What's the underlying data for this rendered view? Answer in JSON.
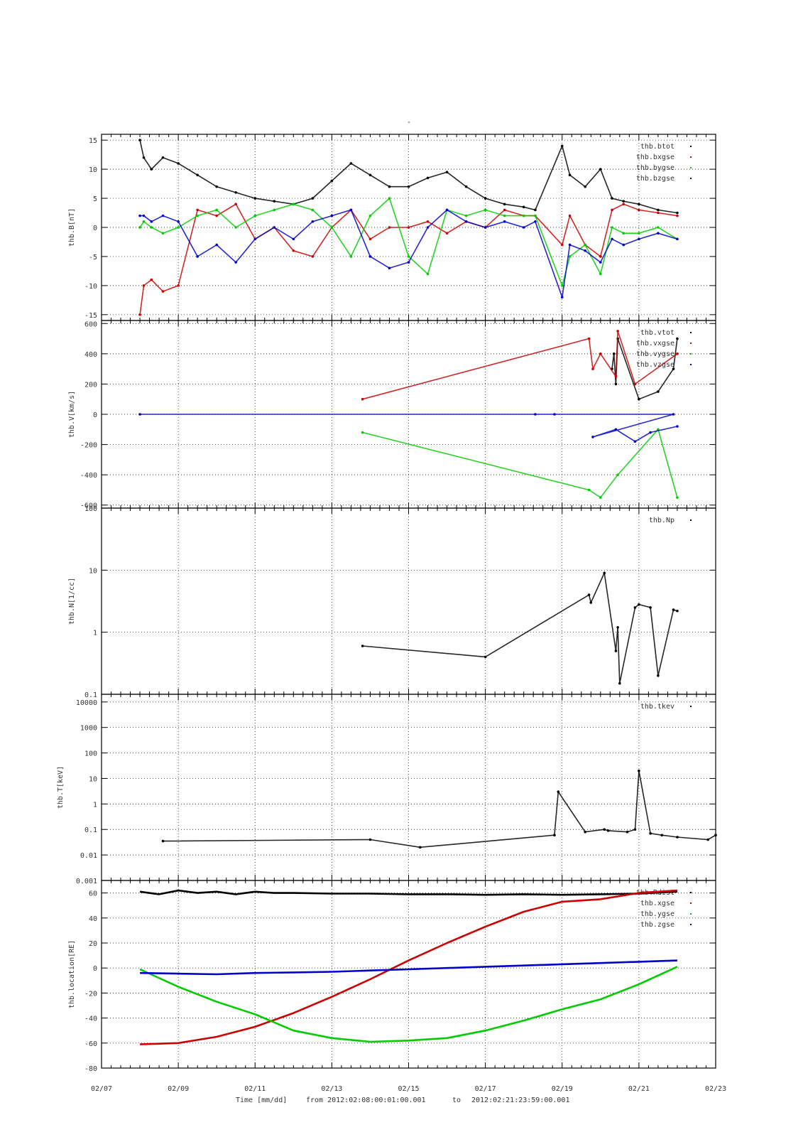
{
  "figure": {
    "top_mark": "-",
    "caption_time": "Time [mm/dd]",
    "caption_from": "from 2012:02:08:00:01:00.001",
    "caption_to": "to",
    "caption_end": "2012:02:21:23:59:00.001",
    "x_ticks": [
      "02/07",
      "02/09",
      "02/11",
      "02/13",
      "02/15",
      "02/17",
      "02/19",
      "02/21",
      "02/23"
    ]
  },
  "colors": {
    "black": "#000000",
    "red": "#cc0000",
    "green": "#00cc00",
    "blue": "#0000cc"
  },
  "chart_data": [
    {
      "type": "scatter",
      "panel": "B",
      "ylabel": "thb.B[nT]",
      "ylim": [
        -16,
        16
      ],
      "yticks": [
        15,
        10,
        5,
        0,
        -5,
        -10,
        -15
      ],
      "ytick_labels": [
        "15",
        "10",
        "5",
        "0",
        "-5",
        "-10",
        "-15"
      ],
      "legend_position": "top-right",
      "series": [
        {
          "name": "thb.btot",
          "color": "black",
          "x": [
            8.0,
            8.1,
            8.3,
            8.6,
            9.0,
            9.5,
            10.0,
            10.5,
            11.0,
            11.5,
            12.0,
            12.5,
            13.0,
            13.5,
            14.0,
            14.5,
            15.0,
            15.5,
            16.0,
            16.5,
            17.0,
            17.5,
            18.0,
            18.3,
            19.0,
            19.2,
            19.6,
            20.0,
            20.3,
            20.6,
            21.0,
            21.5,
            22.0
          ],
          "y": [
            15,
            12,
            10,
            12,
            11,
            9,
            7,
            6,
            5,
            4.5,
            4,
            5,
            8,
            11,
            9,
            7,
            7,
            8.5,
            9.5,
            7,
            5,
            4,
            3.5,
            3,
            14,
            9,
            7,
            10,
            5,
            4.5,
            4,
            3,
            2.5
          ]
        },
        {
          "name": "thb.bxgse",
          "color": "red",
          "x": [
            8.0,
            8.1,
            8.3,
            8.6,
            9.0,
            9.5,
            10.0,
            10.5,
            11.0,
            11.5,
            12.0,
            12.5,
            13.0,
            13.5,
            14.0,
            14.5,
            15.0,
            15.5,
            16.0,
            16.5,
            17.0,
            17.5,
            18.0,
            18.3,
            19.0,
            19.2,
            19.6,
            20.0,
            20.3,
            20.6,
            21.0,
            21.5,
            22.0
          ],
          "y": [
            -15,
            -10,
            -9,
            -11,
            -10,
            3,
            2,
            4,
            -2,
            0,
            -4,
            -5,
            0,
            3,
            -2,
            0,
            0,
            1,
            -1,
            1,
            0,
            3,
            2,
            2,
            -3,
            2,
            -3,
            -5,
            3,
            4,
            3,
            2.5,
            2
          ]
        },
        {
          "name": "thb.bygse",
          "color": "green",
          "x": [
            8.0,
            8.1,
            8.3,
            8.6,
            9.0,
            9.5,
            10.0,
            10.5,
            11.0,
            11.5,
            12.0,
            12.5,
            13.0,
            13.5,
            14.0,
            14.5,
            15.0,
            15.5,
            16.0,
            16.5,
            17.0,
            17.5,
            18.0,
            18.3,
            19.0,
            19.2,
            19.6,
            20.0,
            20.3,
            20.6,
            21.0,
            21.5,
            22.0
          ],
          "y": [
            0,
            1,
            0,
            -1,
            0,
            2,
            3,
            0,
            2,
            3,
            4,
            3,
            0,
            -5,
            2,
            5,
            -5,
            -8,
            3,
            2,
            3,
            2,
            2,
            2,
            -10,
            -5,
            -3,
            -8,
            0,
            -1,
            -1,
            0,
            -2
          ]
        },
        {
          "name": "thb.bzgse",
          "color": "blue",
          "x": [
            8.0,
            8.1,
            8.3,
            8.6,
            9.0,
            9.5,
            10.0,
            10.5,
            11.0,
            11.5,
            12.0,
            12.5,
            13.0,
            13.5,
            14.0,
            14.5,
            15.0,
            15.5,
            16.0,
            16.5,
            17.0,
            17.5,
            18.0,
            18.3,
            19.0,
            19.2,
            19.6,
            20.0,
            20.3,
            20.6,
            21.0,
            21.5,
            22.0
          ],
          "y": [
            2,
            2,
            1,
            2,
            1,
            -5,
            -3,
            -6,
            -2,
            0,
            -2,
            1,
            2,
            3,
            -5,
            -7,
            -6,
            0,
            3,
            1,
            0,
            1,
            0,
            1,
            -12,
            -3,
            -4,
            -6,
            -2,
            -3,
            -2,
            -1,
            -2
          ]
        }
      ]
    },
    {
      "type": "scatter",
      "panel": "V",
      "ylabel": "thb.V[km/s]",
      "ylim": [
        -620,
        620
      ],
      "yticks": [
        600,
        400,
        200,
        0,
        -200,
        -400,
        -600
      ],
      "ytick_labels": [
        "600",
        "400",
        "200",
        "0",
        "-200",
        "-400",
        "-600"
      ],
      "legend_position": "top-right",
      "series": [
        {
          "name": "thb.vtot",
          "color": "black",
          "x": [
            20.3,
            20.35,
            20.4,
            20.45,
            21.0,
            21.5,
            21.9,
            22.0
          ],
          "y": [
            300,
            400,
            200,
            500,
            100,
            150,
            300,
            500
          ]
        },
        {
          "name": "thb.vxgse",
          "color": "red",
          "x": [
            13.8,
            19.7,
            19.8,
            20.0,
            20.4,
            20.45,
            20.9,
            22.0
          ],
          "y": [
            100,
            500,
            300,
            400,
            250,
            550,
            200,
            400
          ]
        },
        {
          "name": "thb.vygse",
          "color": "green",
          "x": [
            13.8,
            19.7,
            20.0,
            20.45,
            21.5,
            22.0
          ],
          "y": [
            -120,
            -500,
            -550,
            -400,
            -100,
            -550
          ]
        },
        {
          "name": "thb.vzgse",
          "color": "blue",
          "x": [
            8.0,
            18.3,
            18.8,
            21.9,
            19.8,
            20.4,
            20.9,
            21.3,
            22.0
          ],
          "y": [
            0,
            0,
            0,
            0,
            -150,
            -100,
            -180,
            -120,
            -80
          ]
        }
      ]
    },
    {
      "type": "scatter",
      "panel": "N",
      "ylabel": "thb.N[1/cc]",
      "yscale": "log",
      "ylim": [
        0.1,
        100
      ],
      "yticks": [
        100,
        10,
        1,
        0.1
      ],
      "ytick_labels": [
        "100",
        "10",
        "1",
        "0.1"
      ],
      "legend_position": "top-right",
      "series": [
        {
          "name": "thb.Np",
          "color": "black",
          "x": [
            13.8,
            17.0,
            19.7,
            19.75,
            20.1,
            20.4,
            20.45,
            20.5,
            20.9,
            21.0,
            21.3,
            21.5,
            21.9,
            22.0
          ],
          "y": [
            0.6,
            0.4,
            4,
            3,
            9,
            0.5,
            1.2,
            0.15,
            2.5,
            2.8,
            2.5,
            0.2,
            2.3,
            2.2
          ]
        }
      ]
    },
    {
      "type": "scatter",
      "panel": "T",
      "ylabel": "thb.T[keV]",
      "yscale": "log",
      "ylim": [
        0.001,
        20000
      ],
      "yticks": [
        10000,
        1000,
        100,
        10,
        1,
        0.1,
        0.01,
        0.001
      ],
      "ytick_labels": [
        "10000",
        "1000",
        "100",
        "10",
        "1",
        "0.1",
        "0.01",
        "0.001"
      ],
      "legend_position": "top-right",
      "series": [
        {
          "name": "thb.tkev",
          "color": "black",
          "x": [
            8.6,
            14.0,
            15.3,
            18.8,
            18.9,
            19.6,
            20.1,
            20.2,
            20.7,
            20.9,
            21.0,
            21.3,
            21.6,
            22.0,
            22.8,
            23.0
          ],
          "y": [
            0.035,
            0.04,
            0.02,
            0.06,
            3,
            0.08,
            0.1,
            0.09,
            0.08,
            0.1,
            20,
            0.07,
            0.06,
            0.05,
            0.04,
            0.06
          ]
        }
      ]
    },
    {
      "type": "line",
      "panel": "location",
      "ylabel": "thb.location[RE]",
      "ylim": [
        -80,
        70
      ],
      "yticks": [
        60,
        40,
        20,
        0,
        -20,
        -40,
        -60,
        -80
      ],
      "ytick_labels": [
        "60",
        "40",
        "20",
        "0",
        "-20",
        "-40",
        "-60",
        "-80"
      ],
      "legend_position": "top-right",
      "series": [
        {
          "name": "thb.Rdist",
          "color": "black",
          "x": [
            8.0,
            8.5,
            9.0,
            9.5,
            10.0,
            10.5,
            11.0,
            11.5,
            12.0,
            13.0,
            14.0,
            15.0,
            16.0,
            17.0,
            18.0,
            19.0,
            20.0,
            21.0,
            22.0
          ],
          "y": [
            61,
            59,
            62,
            60,
            61,
            59,
            61,
            60,
            60,
            59.5,
            59.5,
            59,
            59,
            58.5,
            59,
            58.5,
            59,
            59.5,
            61
          ]
        },
        {
          "name": "thb.xgse",
          "color": "red",
          "x": [
            8.0,
            9.0,
            10.0,
            11.0,
            12.0,
            13.0,
            14.0,
            15.0,
            16.0,
            17.0,
            18.0,
            19.0,
            20.0,
            21.0,
            22.0
          ],
          "y": [
            -61,
            -60,
            -55,
            -47,
            -36,
            -23,
            -9,
            6,
            20,
            33,
            45,
            53,
            55,
            60,
            62
          ]
        },
        {
          "name": "thb.ygse",
          "color": "green",
          "x": [
            8.0,
            9.0,
            10.0,
            11.0,
            12.0,
            13.0,
            14.0,
            15.0,
            16.0,
            17.0,
            18.0,
            19.0,
            20.0,
            21.0,
            22.0
          ],
          "y": [
            -1,
            -15,
            -27,
            -37,
            -50,
            -56,
            -59,
            -58,
            -56,
            -50,
            -42,
            -33,
            -25,
            -13,
            1
          ]
        },
        {
          "name": "thb.zgse",
          "color": "blue",
          "x": [
            8.0,
            9.0,
            10.0,
            11.0,
            12.0,
            13.0,
            14.0,
            15.0,
            16.0,
            17.0,
            18.0,
            19.0,
            20.0,
            21.0,
            22.0
          ],
          "y": [
            -4,
            -4.5,
            -5,
            -4,
            -3.5,
            -3,
            -2,
            -1,
            0,
            1,
            2,
            3,
            4,
            5,
            6
          ]
        }
      ]
    }
  ]
}
